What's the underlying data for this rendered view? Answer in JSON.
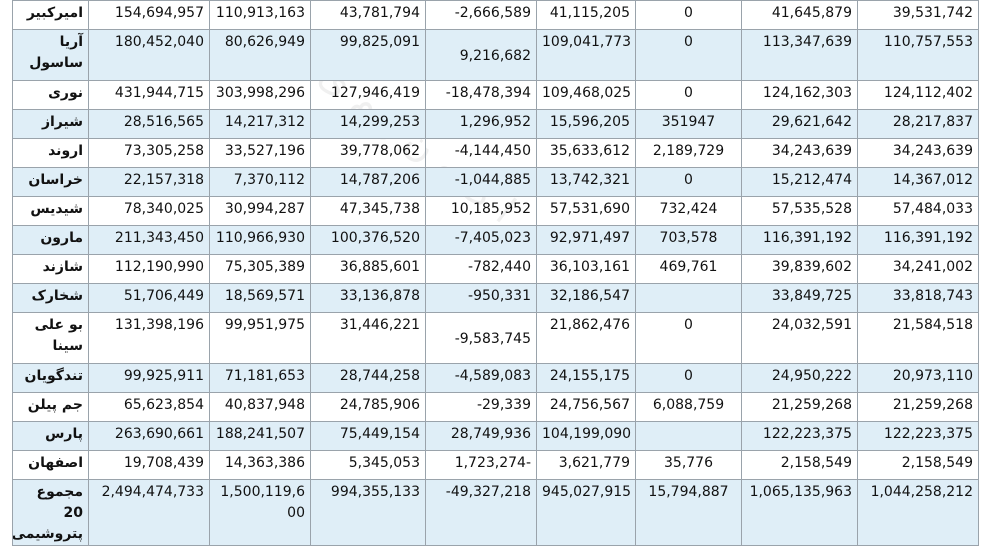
{
  "rows": [
    {
      "name": "امیرکبیر",
      "c1": "154,694,957",
      "c2": "110,913,163",
      "c3": "43,781,794",
      "c4": "-2,666,589",
      "c5": "41,115,205",
      "c6": "0",
      "c7": "41,645,879",
      "c8": "39,531,742"
    },
    {
      "name": "آریا ساسول",
      "c1": "180,452,040",
      "c2": "80,626,949",
      "c3": "99,825,091",
      "c4": "9,216,682",
      "c5": "109,041,773",
      "c6": "0",
      "c7": "113,347,639",
      "c8": "110,757,553"
    },
    {
      "name": "نوری",
      "c1": "431,944,715",
      "c2": "303,998,296",
      "c3": "127,946,419",
      "c4": "-18,478,394",
      "c5": "109,468,025",
      "c6": "0",
      "c7": "124,162,303",
      "c8": "124,112,402"
    },
    {
      "name": "شیراز",
      "c1": "28,516,565",
      "c2": "14,217,312",
      "c3": "14,299,253",
      "c4": "1,296,952",
      "c5": "15,596,205",
      "c6": "351947",
      "c7": "29,621,642",
      "c8": "28,217,837"
    },
    {
      "name": "اروند",
      "c1": "73,305,258",
      "c2": "33,527,196",
      "c3": "39,778,062",
      "c4": "-4,144,450",
      "c5": "35,633,612",
      "c6": "2,189,729",
      "c7": "34,243,639",
      "c8": "34,243,639"
    },
    {
      "name": "خراسان",
      "c1": "22,157,318",
      "c2": "7,370,112",
      "c3": "14,787,206",
      "c4": "-1,044,885",
      "c5": "13,742,321",
      "c6": "0",
      "c7": "15,212,474",
      "c8": "14,367,012"
    },
    {
      "name": "شیدیس",
      "c1": "78,340,025",
      "c2": "30,994,287",
      "c3": "47,345,738",
      "c4": "10,185,952",
      "c5": "57,531,690",
      "c6": "732,424",
      "c7": "57,535,528",
      "c8": "57,484,033"
    },
    {
      "name": "مارون",
      "c1": "211,343,450",
      "c2": "110,966,930",
      "c3": "100,376,520",
      "c4": "-7,405,023",
      "c5": "92,971,497",
      "c6": "703,578",
      "c7": "116,391,192",
      "c8": "116,391,192"
    },
    {
      "name": "شازند",
      "c1": "112,190,990",
      "c2": "75,305,389",
      "c3": "36,885,601",
      "c4": "-782,440",
      "c5": "36,103,161",
      "c6": "469,761",
      "c7": "39,839,602",
      "c8": "34,241,002"
    },
    {
      "name": "شخارک",
      "c1": "51,706,449",
      "c2": "18,569,571",
      "c3": "33,136,878",
      "c4": "-950,331",
      "c5": "32,186,547",
      "c6": "",
      "c7": "33,849,725",
      "c8": "33,818,743"
    },
    {
      "name": "بو علی سینا",
      "c1": "131,398,196",
      "c2": "99,951,975",
      "c3": "31,446,221",
      "c4": "-9,583,745",
      "c5": "21,862,476",
      "c6": "0",
      "c7": "24,032,591",
      "c8": "21,584,518"
    },
    {
      "name": "تندگویان",
      "c1": "99,925,911",
      "c2": "71,181,653",
      "c3": "28,744,258",
      "c4": "-4,589,083",
      "c5": "24,155,175",
      "c6": "0",
      "c7": "24,950,222",
      "c8": "20,973,110"
    },
    {
      "name": "جم پیلن",
      "c1": "65,623,854",
      "c2": "40,837,948",
      "c3": "24,785,906",
      "c4": "-29,339",
      "c5": "24,756,567",
      "c6": "6,088,759",
      "c7": "21,259,268",
      "c8": "21,259,268"
    },
    {
      "name": "پارس",
      "c1": "263,690,661",
      "c2": "188,241,507",
      "c3": "75,449,154",
      "c4": "28,749,936",
      "c5": "104,199,090",
      "c6": "",
      "c7": "122,223,375",
      "c8": "122,223,375"
    },
    {
      "name": "اصفهان",
      "c1": "19,708,439",
      "c2": "14,363,386",
      "c3": "5,345,053",
      "c4": "1,723,274-",
      "c5": "3,621,779",
      "c6": "35,776",
      "c7": "2,158,549",
      "c8": "2,158,549"
    },
    {
      "name": "مجموع 20 پتروشیمی",
      "c1": "2,494,474,733",
      "c2": "1,500,119,600",
      "c3": "994,355,133",
      "c4": "-49,327,218",
      "c5": "945,027,915",
      "c6": "15,794,887",
      "c7": "1,065,135,963",
      "c8": "1,044,258,212"
    }
  ]
}
